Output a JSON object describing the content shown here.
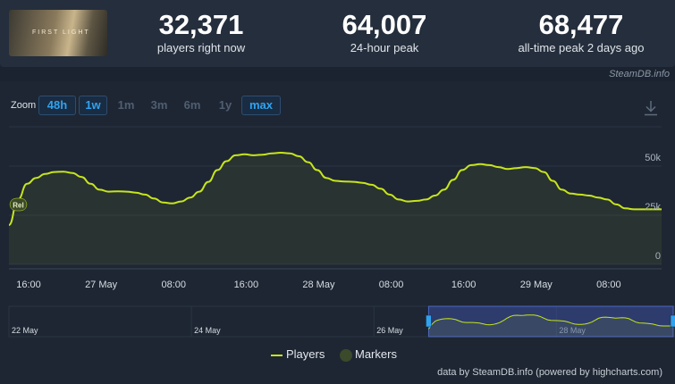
{
  "colors": {
    "accent": "#2fa3ef",
    "series": "#c7e51c",
    "marker": "#3b4a2a"
  },
  "stats": [
    {
      "value": "32,371",
      "label": "players right now"
    },
    {
      "value": "64,007",
      "label": "24-hour peak"
    },
    {
      "value": "68,477",
      "label": "all-time peak 2 days ago"
    }
  ],
  "game": {
    "cover_text": "FIRST LIGHT"
  },
  "credit_top": "SteamDB.info",
  "zoom": {
    "label": "Zoom",
    "buttons": [
      {
        "label": "48h",
        "active": true
      },
      {
        "label": "1w",
        "active": true
      },
      {
        "label": "1m",
        "active": false
      },
      {
        "label": "3m",
        "active": false
      },
      {
        "label": "6m",
        "active": false
      },
      {
        "label": "1y",
        "active": false
      },
      {
        "label": "max",
        "active": true
      }
    ],
    "download_icon": "download-icon"
  },
  "legend": {
    "players": "Players",
    "markers": "Markers"
  },
  "credit_bottom": "data by SteamDB.info (powered by highcharts.com)",
  "chart_data": {
    "type": "line",
    "series": [
      {
        "name": "Players",
        "x_hours": [
          0,
          1,
          2,
          3,
          4,
          5,
          6,
          7,
          8,
          9,
          10,
          11,
          12,
          13,
          14,
          15,
          16,
          17,
          18,
          19,
          20,
          21,
          22,
          23,
          24,
          25,
          26,
          27,
          28,
          29,
          30,
          31,
          32,
          33,
          34,
          35,
          36,
          37,
          38,
          39,
          40,
          41,
          42,
          43,
          44,
          45,
          46,
          47,
          48,
          49,
          50,
          51,
          52,
          53,
          54,
          55,
          56,
          57,
          58,
          59,
          60,
          61,
          62,
          63,
          64,
          65,
          66,
          67,
          68,
          69,
          70,
          71,
          72,
          73,
          74,
          75,
          76,
          77,
          78,
          79,
          80,
          81,
          82,
          83,
          84,
          85,
          86,
          87,
          88,
          89,
          90,
          91,
          92,
          93
        ],
        "values": [
          20000,
          33000,
          41000,
          44000,
          46000,
          47000,
          47200,
          46500,
          44500,
          41000,
          38000,
          37000,
          37200,
          37000,
          36500,
          35500,
          33500,
          31500,
          31000,
          32000,
          34000,
          37000,
          42000,
          48000,
          52500,
          55500,
          56000,
          55500,
          55800,
          56500,
          56800,
          56500,
          55000,
          52000,
          48000,
          44000,
          42500,
          42200,
          42000,
          41500,
          40500,
          38500,
          35500,
          33000,
          32000,
          32300,
          33000,
          35000,
          38000,
          43000,
          48000,
          50500,
          51000,
          50500,
          49500,
          48500,
          49000,
          49500,
          49000,
          47000,
          42500,
          38000,
          36000,
          35500,
          35000,
          34000,
          33000,
          30500,
          28500,
          28000,
          28000,
          28000,
          28000,
          28000,
          28000,
          28000,
          28000,
          28000,
          28000,
          28000,
          28000,
          28000,
          28000,
          28000,
          28000,
          28000,
          28000,
          28000,
          28000,
          28000,
          28000,
          28000,
          28000,
          28000
        ]
      }
    ],
    "visible_hours": 72,
    "x_tick_labels": [
      "16:00",
      "27 May",
      "08:00",
      "16:00",
      "28 May",
      "08:00",
      "16:00",
      "29 May",
      "08:00"
    ],
    "x_tick_hours": [
      0,
      8,
      16,
      24,
      32,
      40,
      48,
      56,
      64
    ],
    "y_tick_labels": [
      "0",
      "25k",
      "50k"
    ],
    "y_ticks": [
      0,
      25000,
      50000
    ],
    "ylim": [
      0,
      70000
    ],
    "markers": [
      {
        "label": "Rel",
        "hour": 0
      }
    ],
    "navigator": {
      "labels": [
        "22 May",
        "24 May",
        "26 May",
        "28 May"
      ],
      "label_days": [
        0,
        2,
        4,
        6
      ],
      "selection_days": [
        4.6,
        7.3
      ]
    }
  }
}
